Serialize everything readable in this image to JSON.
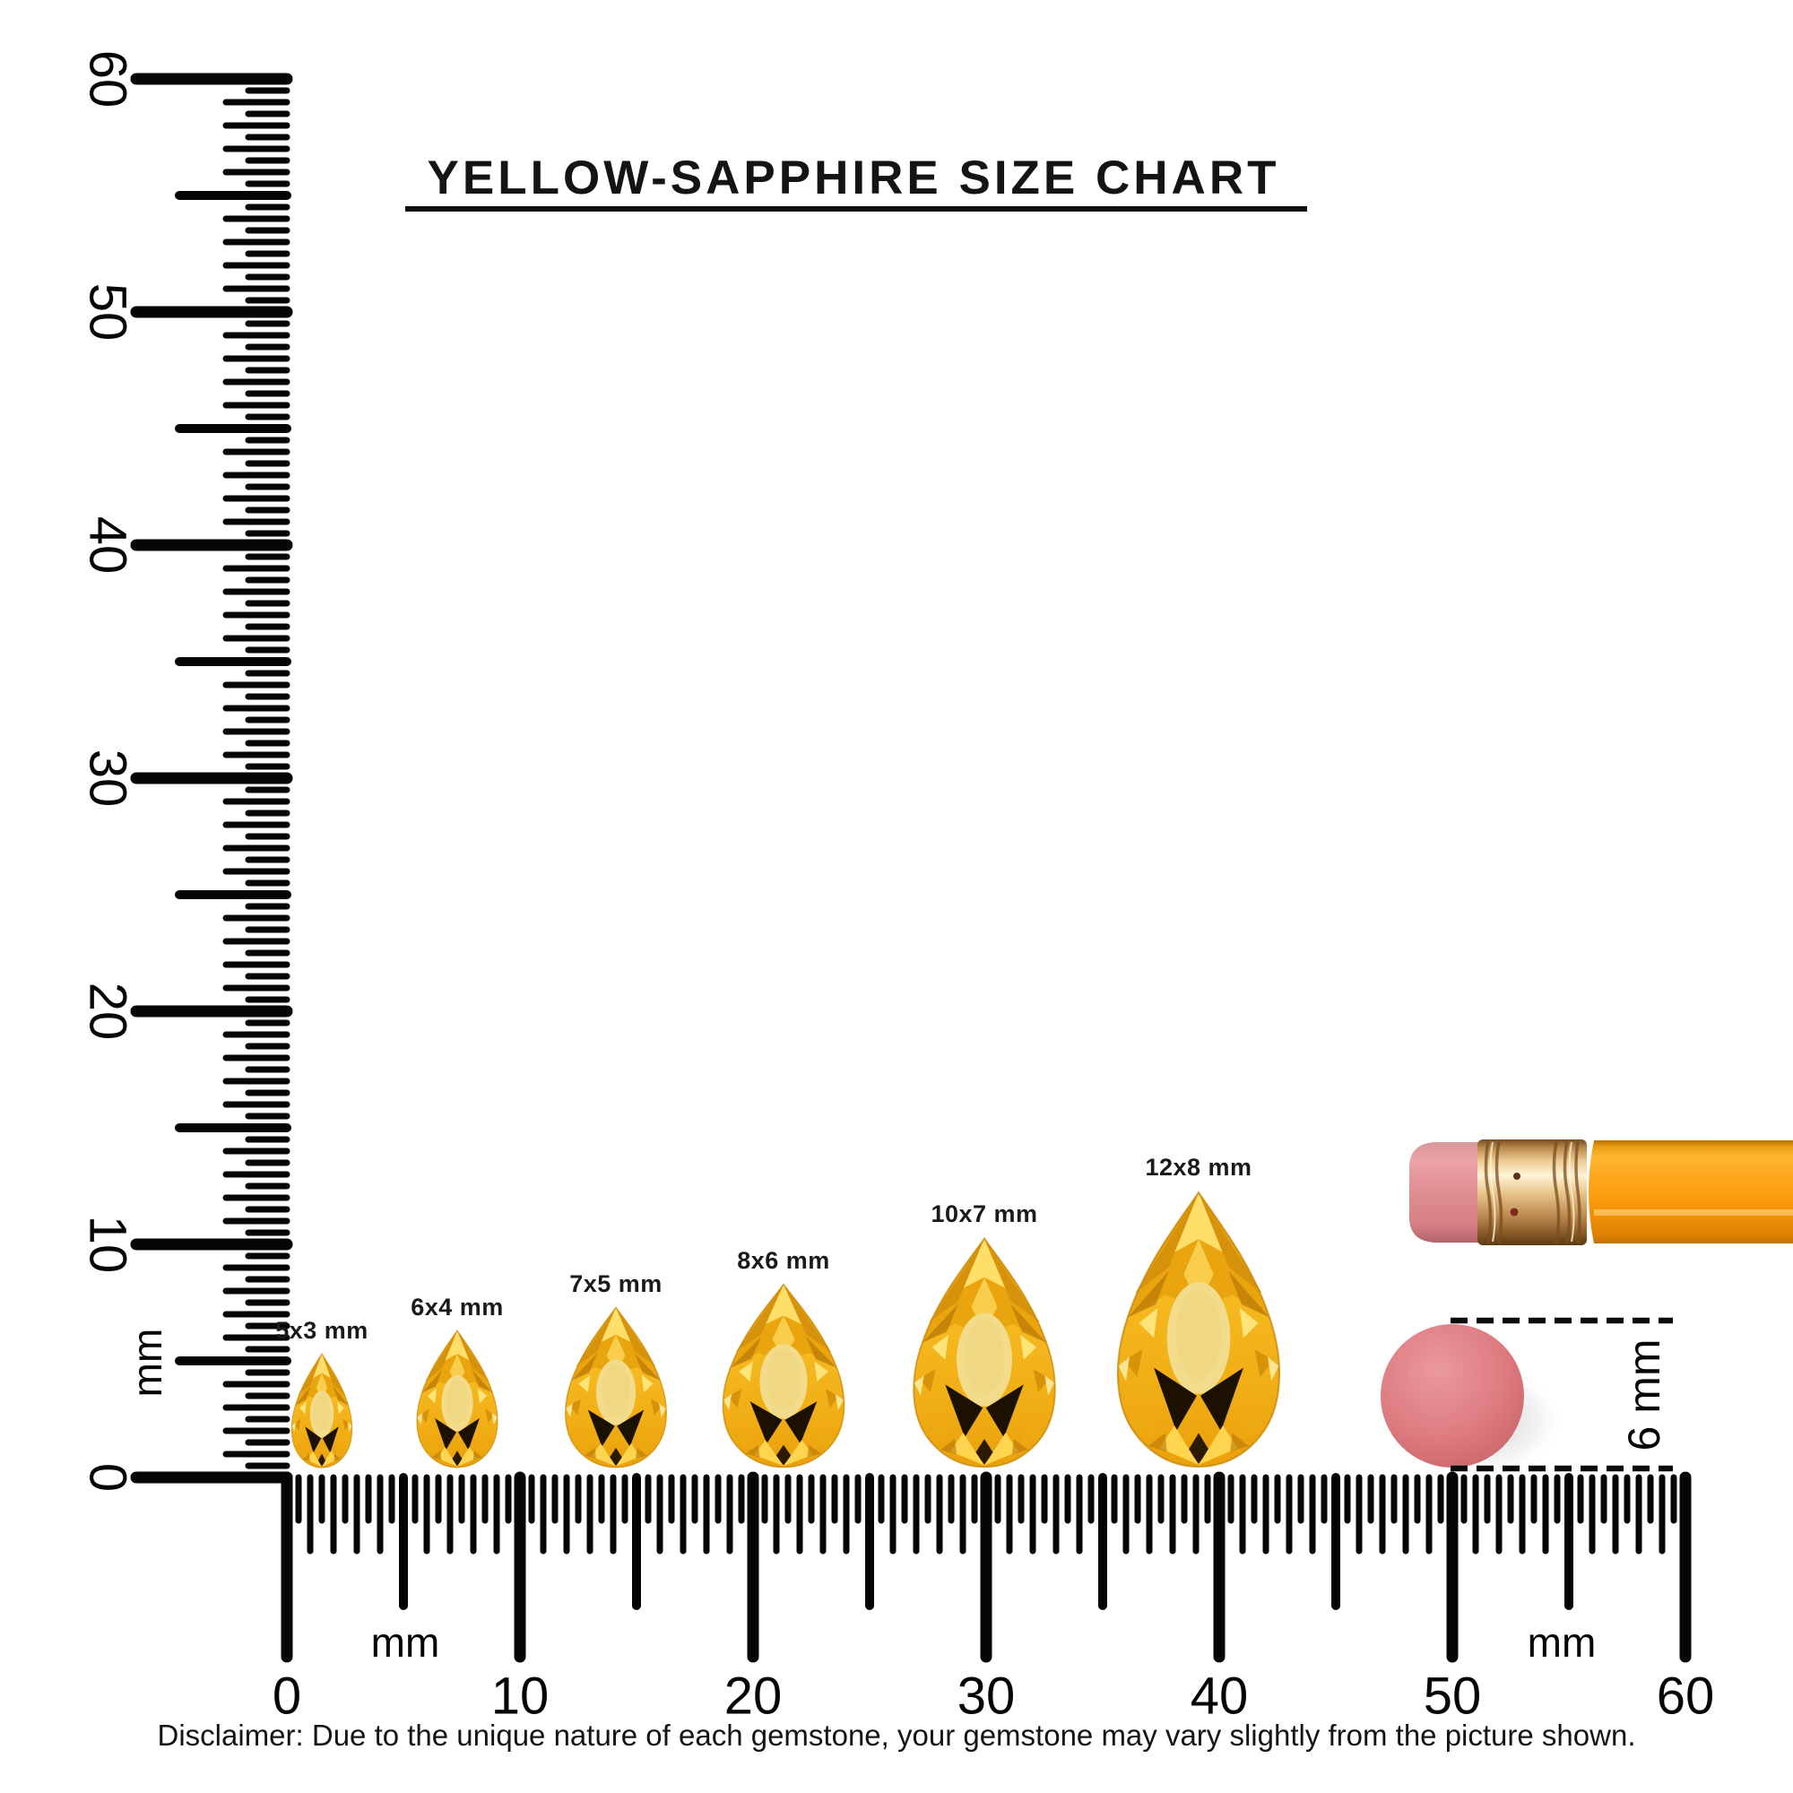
{
  "title": "YELLOW-SAPPHIRE SIZE CHART",
  "disclaimer": "Disclaimer: Due to the unique nature of each gemstone, your gemstone may vary slightly from the picture shown.",
  "rulers": {
    "unit": "mm",
    "min_mm": 0,
    "max_mm": 60,
    "label_step_mm": 10,
    "tick_step_mm": 0.5,
    "tick_labels": [
      "0",
      "10",
      "20",
      "30",
      "40",
      "50",
      "60"
    ],
    "vertical_unit_label": "mm",
    "horizontal_unit_labels": [
      "mm",
      "mm"
    ]
  },
  "gems": [
    {
      "label": "5x3 mm",
      "length_mm": 5,
      "width_mm": 3
    },
    {
      "label": "6x4 mm",
      "length_mm": 6,
      "width_mm": 4
    },
    {
      "label": "7x5 mm",
      "length_mm": 7,
      "width_mm": 5
    },
    {
      "label": "8x6 mm",
      "length_mm": 8,
      "width_mm": 6
    },
    {
      "label": "10x7 mm",
      "length_mm": 10,
      "width_mm": 7
    },
    {
      "label": "12x8 mm",
      "length_mm": 12,
      "width_mm": 8
    }
  ],
  "reference_objects": {
    "pencil": "pencil with pink eraser",
    "round_eraser_label": "6 mm",
    "round_eraser_diameter_mm": 6
  },
  "colors": {
    "gem_gold": "#F5B81F",
    "gem_table": "#F2DC8C",
    "gem_shadow": "#1C1100",
    "pencil_body": "#FC9C0E",
    "pencil_ferrule": "#E6C186",
    "pencil_eraser": "#E08E92",
    "round_eraser": "#D97479",
    "ink": "#000000"
  },
  "chart_data": {
    "type": "table",
    "title": "YELLOW-SAPPHIRE SIZE CHART",
    "unit": "mm",
    "categories": [
      "5x3 mm",
      "6x4 mm",
      "7x5 mm",
      "8x6 mm",
      "10x7 mm",
      "12x8 mm"
    ],
    "series": [
      {
        "name": "length_mm",
        "values": [
          5,
          6,
          7,
          8,
          10,
          12
        ]
      },
      {
        "name": "width_mm",
        "values": [
          3,
          4,
          5,
          6,
          7,
          8
        ]
      }
    ],
    "axis": {
      "x_range_mm": [
        0,
        60
      ],
      "y_range_mm": [
        0,
        60
      ]
    }
  }
}
